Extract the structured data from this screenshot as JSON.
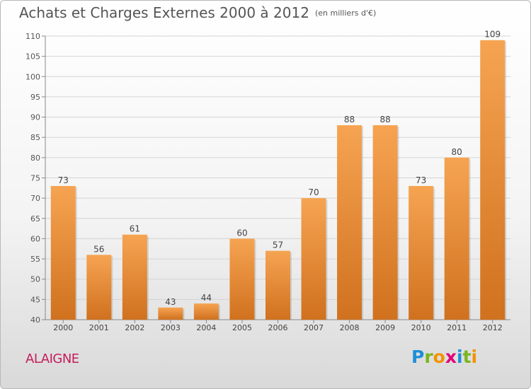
{
  "title": "Achats et Charges Externes 2000 à 2012",
  "subtitle": "(en milliers d'€)",
  "place_name": "ALAIGNE",
  "brand": {
    "name": "Proxiti",
    "letters": [
      {
        "ch": "P",
        "color": "#1e8fd8"
      },
      {
        "ch": "r",
        "color": "#7ab51d"
      },
      {
        "ch": "o",
        "color": "#f39200"
      },
      {
        "ch": "x",
        "color": "#e2007a"
      },
      {
        "ch": "i",
        "color": "#1e8fd8"
      },
      {
        "ch": "t",
        "color": "#7ab51d"
      },
      {
        "ch": "i",
        "color": "#f39200"
      }
    ]
  },
  "colors": {
    "bar_top": "#f6a452",
    "bar_bottom": "#d0711e",
    "place": "#c51d5b",
    "text": "#555555"
  },
  "chart_data": {
    "type": "bar",
    "categories": [
      "2000",
      "2001",
      "2002",
      "2003",
      "2004",
      "2005",
      "2006",
      "2007",
      "2008",
      "2009",
      "2010",
      "2011",
      "2012"
    ],
    "values": [
      73,
      56,
      61,
      43,
      44,
      60,
      57,
      70,
      88,
      88,
      73,
      80,
      109
    ],
    "ylim": [
      40,
      110
    ],
    "yticks": [
      40,
      45,
      50,
      55,
      60,
      65,
      70,
      75,
      80,
      85,
      90,
      95,
      100,
      105,
      110
    ],
    "grid": true,
    "xlabel": "",
    "ylabel": ""
  }
}
